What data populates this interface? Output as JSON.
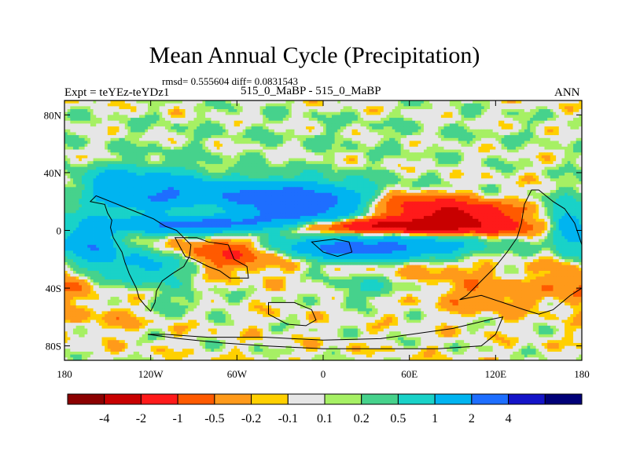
{
  "chart_data": {
    "type": "heatmap",
    "title": "Mean Annual Cycle (Precipitation)",
    "subtitle": "rmsd= 0.555604 diff= 0.0831543",
    "left_label": "Expt = teYEz-teYDz1",
    "center_label": "515_0_MaBP - 515_0_MaBP",
    "right_label": "ANN",
    "x_ticks": [
      "180",
      "120W",
      "60W",
      "0",
      "60E",
      "120E",
      "180"
    ],
    "x_tick_values": [
      -180,
      -120,
      -60,
      0,
      60,
      120,
      180
    ],
    "y_ticks": [
      "80N",
      "40N",
      "0",
      "40S",
      "80S"
    ],
    "y_tick_values": [
      80,
      40,
      0,
      -40,
      -80
    ],
    "xlim": [
      -180,
      180
    ],
    "ylim": [
      -90,
      90
    ],
    "colorbar": {
      "labels": [
        "-4",
        "-2",
        "-1",
        "-0.5",
        "-0.2",
        "-0.1",
        "0.1",
        "0.2",
        "0.5",
        "1",
        "2",
        "4"
      ],
      "colors": [
        "#8b0000",
        "#c80000",
        "#ff1a1a",
        "#ff5a00",
        "#ff9a1a",
        "#ffd000",
        "#e6e6e6",
        "#a6f064",
        "#46d28c",
        "#19d2c8",
        "#00b4f0",
        "#1e6eff",
        "#1414c8",
        "#000078"
      ]
    },
    "field_blobs": [
      {
        "lon": -120,
        "lat": 25,
        "rx": 28,
        "ry": 12,
        "v": 1.8
      },
      {
        "lon": -25,
        "lat": 18,
        "rx": 45,
        "ry": 10,
        "v": 3.6
      },
      {
        "lon": -85,
        "lat": 4,
        "rx": 38,
        "ry": 4,
        "v": 2.2
      },
      {
        "lon": 55,
        "lat": 3,
        "rx": 55,
        "ry": 4,
        "v": -2.8
      },
      {
        "lon": 30,
        "lat": -12,
        "rx": 48,
        "ry": 6,
        "v": 2.5
      },
      {
        "lon": -75,
        "lat": 14,
        "rx": 30,
        "ry": 5,
        "v": -1.6
      },
      {
        "lon": 50,
        "lat": 18,
        "rx": 30,
        "ry": 6,
        "v": -1.6
      },
      {
        "lon": 95,
        "lat": 12,
        "rx": 24,
        "ry": 5,
        "v": -1.9
      },
      {
        "lon": -60,
        "lat": -15,
        "rx": 28,
        "ry": 8,
        "v": -1.2
      },
      {
        "lon": -160,
        "lat": -10,
        "rx": 12,
        "ry": 12,
        "v": 2.0
      },
      {
        "lon": -120,
        "lat": -25,
        "rx": 18,
        "ry": 8,
        "v": 1.3
      },
      {
        "lon": 170,
        "lat": 2,
        "rx": 8,
        "ry": 12,
        "v": 1.6
      },
      {
        "lon": 175,
        "lat": -35,
        "rx": 15,
        "ry": 10,
        "v": -0.6
      },
      {
        "lon": -150,
        "lat": 35,
        "rx": 12,
        "ry": 5,
        "v": 0.9
      },
      {
        "lon": 115,
        "lat": -45,
        "rx": 25,
        "ry": 8,
        "v": -0.5
      },
      {
        "lon": -150,
        "lat": -60,
        "rx": 20,
        "ry": 8,
        "v": -0.25
      },
      {
        "lon": -10,
        "lat": 65,
        "rx": 170,
        "ry": 18,
        "v": 0.15
      },
      {
        "lon": 30,
        "lat": -40,
        "rx": 18,
        "ry": 6,
        "v": 0.5
      },
      {
        "lon": -100,
        "lat": -50,
        "rx": 20,
        "ry": 6,
        "v": 0.3
      },
      {
        "lon": 80,
        "lat": -25,
        "rx": 30,
        "ry": 6,
        "v": -0.35
      }
    ],
    "land_outlines": [
      [
        [
          -162,
          20
        ],
        [
          -152,
          18
        ],
        [
          -150,
          12
        ],
        [
          -147,
          7
        ],
        [
          -148,
          2
        ],
        [
          -146,
          -5
        ],
        [
          -140,
          -15
        ],
        [
          -138,
          -22
        ],
        [
          -135,
          -30
        ],
        [
          -130,
          -40
        ],
        [
          -128,
          -47
        ],
        [
          -124,
          -52
        ],
        [
          -120,
          -56
        ],
        [
          -117,
          -50
        ],
        [
          -116,
          -42
        ],
        [
          -112,
          -35
        ],
        [
          -105,
          -30
        ],
        [
          -97,
          -25
        ],
        [
          -93,
          -18
        ],
        [
          -92,
          -10
        ],
        [
          -97,
          -5
        ],
        [
          -102,
          0
        ],
        [
          -110,
          3
        ],
        [
          -118,
          8
        ],
        [
          -128,
          12
        ],
        [
          -138,
          16
        ],
        [
          -148,
          20
        ],
        [
          -158,
          24
        ],
        [
          -162,
          20
        ]
      ],
      [
        [
          -103,
          -5
        ],
        [
          -88,
          -5
        ],
        [
          -80,
          -8
        ],
        [
          -66,
          -10
        ],
        [
          -62,
          -20
        ],
        [
          -53,
          -25
        ],
        [
          -52,
          -33
        ],
        [
          -65,
          -33
        ],
        [
          -72,
          -28
        ],
        [
          -80,
          -25
        ],
        [
          -90,
          -20
        ],
        [
          -96,
          -18
        ],
        [
          -103,
          -5
        ]
      ],
      [
        [
          -8,
          -8
        ],
        [
          8,
          -6
        ],
        [
          18,
          -8
        ],
        [
          20,
          -15
        ],
        [
          10,
          -18
        ],
        [
          0,
          -15
        ],
        [
          -8,
          -8
        ]
      ],
      [
        [
          -38,
          -50
        ],
        [
          -20,
          -50
        ],
        [
          -8,
          -55
        ],
        [
          -5,
          -62
        ],
        [
          -12,
          -66
        ],
        [
          -25,
          -65
        ],
        [
          -38,
          -58
        ],
        [
          -38,
          -50
        ]
      ],
      [
        [
          95,
          -48
        ],
        [
          110,
          -45
        ],
        [
          125,
          -50
        ],
        [
          140,
          -55
        ],
        [
          150,
          -58
        ],
        [
          160,
          -55
        ],
        [
          172,
          -45
        ],
        [
          180,
          -40
        ],
        [
          180,
          -10
        ],
        [
          175,
          5
        ],
        [
          168,
          15
        ],
        [
          160,
          20
        ],
        [
          150,
          28
        ],
        [
          145,
          28
        ],
        [
          140,
          18
        ],
        [
          138,
          5
        ],
        [
          135,
          -5
        ],
        [
          128,
          -15
        ],
        [
          120,
          -25
        ],
        [
          110,
          -35
        ],
        [
          100,
          -45
        ],
        [
          95,
          -48
        ]
      ],
      [
        [
          -122,
          -72
        ],
        [
          -100,
          -75
        ],
        [
          -70,
          -78
        ],
        [
          -40,
          -80
        ],
        [
          0,
          -82
        ],
        [
          40,
          -82
        ],
        [
          80,
          -82
        ],
        [
          110,
          -80
        ],
        [
          120,
          -72
        ],
        [
          125,
          -60
        ],
        [
          115,
          -62
        ],
        [
          90,
          -68
        ],
        [
          40,
          -75
        ],
        [
          0,
          -76
        ],
        [
          -40,
          -74
        ],
        [
          -80,
          -74
        ],
        [
          -110,
          -72
        ],
        [
          -122,
          -72
        ]
      ]
    ]
  }
}
